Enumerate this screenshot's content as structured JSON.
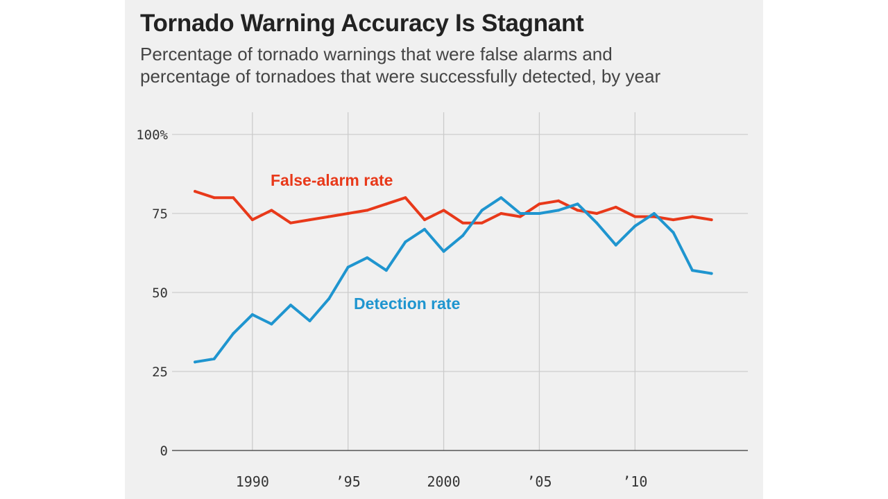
{
  "title": "Tornado Warning Accuracy Is Stagnant",
  "subtitle": [
    "Percentage of tornado warnings that were false alarms and",
    "percentage of tornadoes that were successfully detected, by year"
  ],
  "colors": {
    "false_alarm": "#e8391a",
    "detection": "#1f95cf",
    "background": "#f0f0f0",
    "grid": "#cccccc",
    "baseline": "#555555"
  },
  "chart_data": {
    "type": "line",
    "title": "Tornado Warning Accuracy Is Stagnant",
    "xlabel": "",
    "ylabel": "",
    "xlim": [
      1985.8,
      2015.9
    ],
    "ylim": [
      0,
      100
    ],
    "grid": true,
    "legend": "inline labels",
    "x_ticks": [
      {
        "value": 1990,
        "label": "1990"
      },
      {
        "value": 1995,
        "label": "’95"
      },
      {
        "value": 2000,
        "label": "2000"
      },
      {
        "value": 2005,
        "label": "’05"
      },
      {
        "value": 2010,
        "label": "’10"
      }
    ],
    "y_ticks": [
      {
        "value": 0,
        "label": "0"
      },
      {
        "value": 25,
        "label": "25"
      },
      {
        "value": 50,
        "label": "50"
      },
      {
        "value": 75,
        "label": "75"
      },
      {
        "value": 100,
        "label": "100%"
      }
    ],
    "x": [
      1987,
      1988,
      1989,
      1990,
      1991,
      1992,
      1993,
      1994,
      1995,
      1996,
      1997,
      1998,
      1999,
      2000,
      2001,
      2002,
      2003,
      2004,
      2005,
      2006,
      2007,
      2008,
      2009,
      2010,
      2011,
      2012,
      2013,
      2014
    ],
    "series": [
      {
        "name": "False-alarm rate",
        "color": "#e8391a",
        "values": [
          82,
          80,
          80,
          73,
          76,
          72,
          73,
          74,
          75,
          76,
          78,
          80,
          73,
          76,
          72,
          72,
          75,
          74,
          78,
          79,
          76,
          75,
          77,
          74,
          74,
          73,
          74,
          73
        ]
      },
      {
        "name": "Detection rate",
        "color": "#1f95cf",
        "values": [
          28,
          29,
          37,
          43,
          40,
          46,
          41,
          48,
          58,
          61,
          57,
          66,
          70,
          63,
          68,
          76,
          80,
          75,
          75,
          76,
          78,
          72,
          65,
          71,
          75,
          69,
          57,
          56
        ]
      }
    ]
  }
}
